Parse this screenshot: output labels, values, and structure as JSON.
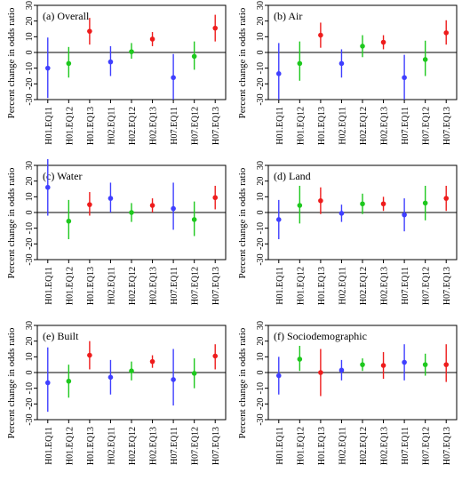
{
  "figure": {
    "ylabel": "Percent change in odds ratio",
    "categories": [
      "H01.EQ11",
      "H01.EQ12",
      "H01.EQ13",
      "H02.EQ11",
      "H02.EQ12",
      "H02.EQ13",
      "H07.EQ11",
      "H07.EQ12",
      "H07.EQ13"
    ],
    "colors": [
      "#3f3fff",
      "#1ec81e",
      "#ee1c1c",
      "#3f3fff",
      "#1ec81e",
      "#ee1c1c",
      "#3f3fff",
      "#1ec81e",
      "#ee1c1c"
    ]
  },
  "chart_data": [
    {
      "type": "scatter",
      "title": "(a) Overall",
      "ylabel": "Percent change in odds ratio",
      "ylim": [
        -30,
        30
      ],
      "yticks": [
        -30,
        -20,
        -10,
        0,
        10,
        20,
        30
      ],
      "categories": [
        "H01.EQ11",
        "H01.EQ12",
        "H01.EQ13",
        "H02.EQ11",
        "H02.EQ12",
        "H02.EQ13",
        "H07.EQ11",
        "H07.EQ12",
        "H07.EQ13"
      ],
      "estimates": [
        -10,
        -7,
        13.5,
        -6,
        0.5,
        8.5,
        -16,
        -2.5,
        15.5
      ],
      "lower": [
        -29,
        -16,
        5,
        -15,
        -4,
        4,
        -30,
        -11,
        7
      ],
      "upper": [
        9.5,
        3.5,
        22,
        4,
        6,
        13,
        -1,
        7,
        24
      ]
    },
    {
      "type": "scatter",
      "title": "(b) Air",
      "ylabel": "Percent change in odds ratio",
      "ylim": [
        -30,
        30
      ],
      "yticks": [
        -30,
        -20,
        -10,
        0,
        10,
        20,
        30
      ],
      "categories": [
        "H01.EQ11",
        "H01.EQ12",
        "H01.EQ13",
        "H02.EQ11",
        "H02.EQ12",
        "H02.EQ13",
        "H07.EQ11",
        "H07.EQ12",
        "H07.EQ13"
      ],
      "estimates": [
        -13.5,
        -7,
        11,
        -7,
        4,
        6.5,
        -16,
        -4.5,
        12.5
      ],
      "lower": [
        -30,
        -18,
        3,
        -16,
        -3,
        2,
        -30,
        -15,
        5
      ],
      "upper": [
        6,
        7,
        19,
        2,
        11,
        11,
        -1.5,
        7.5,
        20.5
      ]
    },
    {
      "type": "scatter",
      "title": "(c) Water",
      "ylabel": "Percent change in odds ratio",
      "ylim": [
        -30,
        30
      ],
      "yticks": [
        -30,
        -20,
        -10,
        0,
        10,
        20,
        30
      ],
      "categories": [
        "H01.EQ11",
        "H01.EQ12",
        "H01.EQ13",
        "H02.EQ11",
        "H02.EQ12",
        "H02.EQ13",
        "H07.EQ11",
        "H07.EQ12",
        "H07.EQ13"
      ],
      "estimates": [
        16,
        -5.5,
        5,
        9,
        0,
        4.5,
        2.5,
        -4.5,
        9.5
      ],
      "lower": [
        -2,
        -17,
        -2,
        0,
        -6,
        0,
        -11,
        -15,
        2
      ],
      "upper": [
        34,
        8,
        13,
        19,
        6,
        9,
        19,
        7,
        17
      ]
    },
    {
      "type": "scatter",
      "title": "(d) Land",
      "ylabel": "Percent change in odds ratio",
      "ylim": [
        -30,
        30
      ],
      "yticks": [
        -30,
        -20,
        -10,
        0,
        10,
        20,
        30
      ],
      "categories": [
        "H01.EQ11",
        "H01.EQ12",
        "H01.EQ13",
        "H02.EQ11",
        "H02.EQ12",
        "H02.EQ13",
        "H07.EQ11",
        "H07.EQ12",
        "H07.EQ13"
      ],
      "estimates": [
        -4.5,
        4.5,
        7.5,
        -0.5,
        5.5,
        5.5,
        -1.5,
        6,
        9
      ],
      "lower": [
        -17,
        -7,
        -1,
        -6,
        -1,
        1,
        -12,
        -5,
        1
      ],
      "upper": [
        8,
        17,
        16,
        5,
        12,
        10,
        9,
        17,
        17
      ]
    },
    {
      "type": "scatter",
      "title": "(e) Built",
      "ylabel": "Percent change in odds ratio",
      "ylim": [
        -30,
        30
      ],
      "yticks": [
        -30,
        -20,
        -10,
        0,
        10,
        20,
        30
      ],
      "categories": [
        "H01.EQ11",
        "H01.EQ12",
        "H01.EQ13",
        "H02.EQ11",
        "H02.EQ12",
        "H02.EQ13",
        "H07.EQ11",
        "H07.EQ12",
        "H07.EQ13"
      ],
      "estimates": [
        -6.5,
        -5.5,
        11,
        -3,
        1,
        7,
        -4.5,
        -0.5,
        10.5
      ],
      "lower": [
        -25,
        -16,
        2,
        -14,
        -5,
        3,
        -21,
        -10,
        2
      ],
      "upper": [
        16,
        5,
        20,
        8,
        7,
        11,
        15,
        9,
        18
      ]
    },
    {
      "type": "scatter",
      "title": "(f) Sociodemographic",
      "ylabel": "Percent change in odds ratio",
      "ylim": [
        -30,
        30
      ],
      "yticks": [
        -30,
        -20,
        -10,
        0,
        10,
        20,
        30
      ],
      "categories": [
        "H01.EQ11",
        "H01.EQ12",
        "H01.EQ13",
        "H02.EQ11",
        "H02.EQ12",
        "H02.EQ13",
        "H07.EQ11",
        "H07.EQ12",
        "H07.EQ13"
      ],
      "estimates": [
        -2,
        8.5,
        0,
        1.5,
        5,
        4.5,
        6.5,
        5,
        5
      ],
      "lower": [
        -14,
        1,
        -15,
        -5,
        1,
        -4,
        -5,
        -2,
        -6
      ],
      "upper": [
        10,
        17,
        15,
        8,
        9,
        13,
        18,
        12,
        18
      ]
    }
  ]
}
